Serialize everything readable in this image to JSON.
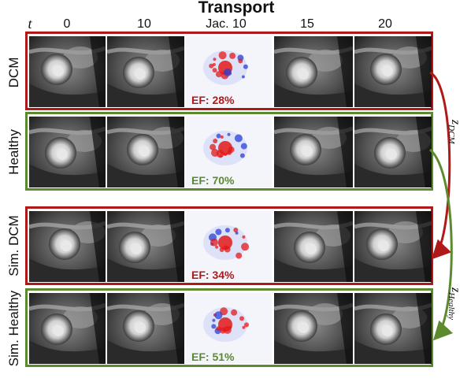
{
  "title": "Transport",
  "time_axis_label": "t",
  "columns": [
    "0",
    "10",
    "Jac. 10",
    "15",
    "20"
  ],
  "rows": [
    {
      "label": "DCM",
      "ef": "EF: 28%",
      "color": "#b01919"
    },
    {
      "label": "Healthy",
      "ef": "EF: 70%",
      "color": "#5b8a2f"
    },
    {
      "label": "Sim. DCM",
      "ef": "EF: 34%",
      "color": "#b01919"
    },
    {
      "label": "Sim. Healthy",
      "ef": "EF: 51%",
      "color": "#5b8a2f"
    }
  ],
  "latent_labels": {
    "dcm": {
      "base": "z",
      "sub": "DCM"
    },
    "healthy": {
      "base": "z",
      "sub": "Healthy"
    }
  }
}
